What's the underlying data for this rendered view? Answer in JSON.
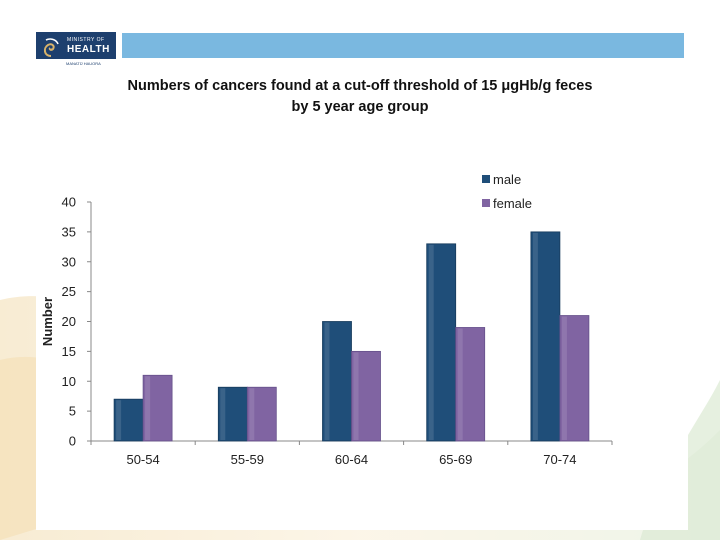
{
  "logo": {
    "line1": "MINISTRY OF",
    "line2": "HEALTH",
    "line3": "MANATŪ HAUORA"
  },
  "colors": {
    "male": "#1f4e79",
    "female": "#8064a2",
    "header_bar": "#7ab8e0",
    "logo_bg": "#1d3f6e"
  },
  "chart_data": {
    "type": "bar",
    "title_line1": "Numbers of cancers found at a cut-off threshold of 15 μgHb/g feces",
    "title_line2": "by 5 year age group",
    "xlabel": "",
    "ylabel": "Number",
    "categories": [
      "50-54",
      "55-59",
      "60-64",
      "65-69",
      "70-74"
    ],
    "series": [
      {
        "name": "male",
        "values": [
          7,
          9,
          20,
          33,
          35
        ]
      },
      {
        "name": "female",
        "values": [
          11,
          9,
          15,
          19,
          21
        ]
      }
    ],
    "ylim": [
      0,
      40
    ],
    "yticks": [
      0,
      5,
      10,
      15,
      20,
      25,
      30,
      35,
      40
    ],
    "legend_position": "top-right",
    "grid": false
  }
}
